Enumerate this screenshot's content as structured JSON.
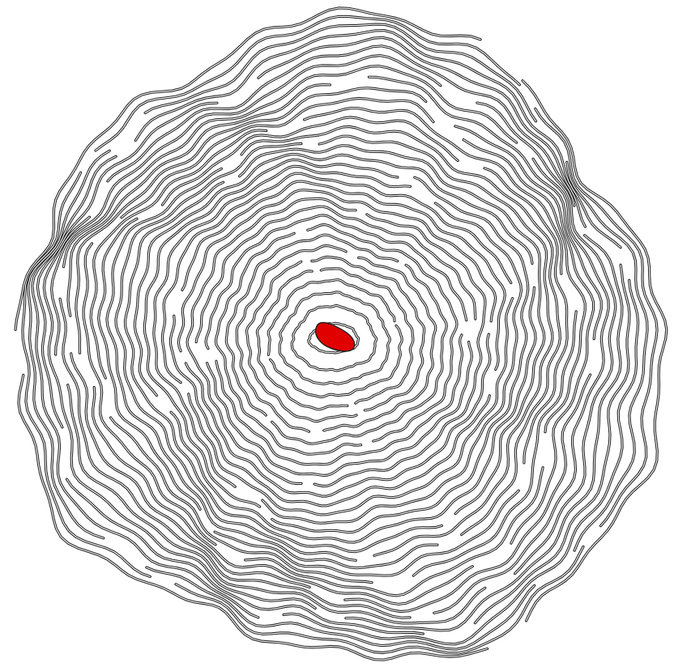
{
  "map": {
    "style": "topographic-contour-art",
    "line_color": "#222222",
    "line_highlight_color": "#ffffff",
    "background_color": "#ffffff",
    "summit_fill_color": "#e00000",
    "contour_ring_count": 34,
    "summit_marker": "filled-summit-region"
  }
}
